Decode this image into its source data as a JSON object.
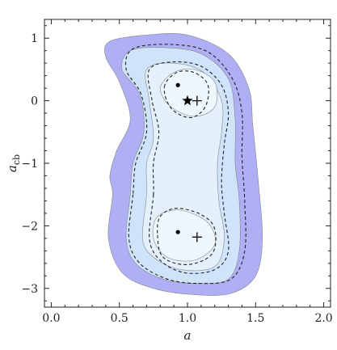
{
  "chart_data": {
    "type": "contour",
    "title": "",
    "xlabel": "a",
    "ylabel_main": "a",
    "ylabel_sub": "cb",
    "xlim": [
      -0.05,
      2.05
    ],
    "ylim": [
      -3.3,
      1.3
    ],
    "xticks": [
      0.0,
      0.5,
      1.0,
      1.5,
      2.0
    ],
    "xtick_labels": [
      "0.0",
      "0.5",
      "1.0",
      "1.5",
      "2.0"
    ],
    "yticks": [
      1,
      0,
      -1,
      -2,
      -3
    ],
    "ytick_labels": [
      "1",
      "0",
      "−1",
      "−2",
      "−3"
    ],
    "grid": false,
    "colors": {
      "outer_region": "#aeaff5",
      "middle_region": "#cfe4fa",
      "inner_region": "#e4f1fd",
      "core_region": "#eef6fe",
      "contour_line": "#222222",
      "region_edge": "#888888"
    },
    "regions": [
      {
        "level": 1,
        "fill": "outer_region",
        "boundary": [
          [
            0.45,
            -1.5
          ],
          [
            0.42,
            -2.2
          ],
          [
            0.52,
            -2.75
          ],
          [
            0.75,
            -3.0
          ],
          [
            1.05,
            -3.1
          ],
          [
            1.32,
            -3.08
          ],
          [
            1.5,
            -2.8
          ],
          [
            1.55,
            -2.2
          ],
          [
            1.52,
            -1.3
          ],
          [
            1.48,
            -0.4
          ],
          [
            1.45,
            0.2
          ],
          [
            1.3,
            0.75
          ],
          [
            1.0,
            1.05
          ],
          [
            0.7,
            1.05
          ],
          [
            0.43,
            0.95
          ],
          [
            0.4,
            0.7
          ],
          [
            0.5,
            0.3
          ],
          [
            0.58,
            -0.3
          ],
          [
            0.48,
            -0.8
          ],
          [
            0.43,
            -1.2
          ]
        ]
      },
      {
        "level": 2,
        "fill": "middle_region",
        "boundary": [
          [
            0.58,
            -1.5
          ],
          [
            0.55,
            -2.2
          ],
          [
            0.62,
            -2.6
          ],
          [
            0.82,
            -2.85
          ],
          [
            1.08,
            -2.92
          ],
          [
            1.3,
            -2.85
          ],
          [
            1.38,
            -2.4
          ],
          [
            1.38,
            -1.6
          ],
          [
            1.35,
            -1.0
          ],
          [
            1.35,
            -0.3
          ],
          [
            1.3,
            0.35
          ],
          [
            1.1,
            0.75
          ],
          [
            0.82,
            0.85
          ],
          [
            0.58,
            0.8
          ],
          [
            0.52,
            0.5
          ],
          [
            0.65,
            0.1
          ],
          [
            0.68,
            -0.5
          ],
          [
            0.6,
            -1.0
          ]
        ]
      },
      {
        "level": 3,
        "fill": "inner_region",
        "boundary": [
          [
            0.7,
            -1.5
          ],
          [
            0.67,
            -2.2
          ],
          [
            0.75,
            -2.5
          ],
          [
            0.95,
            -2.7
          ],
          [
            1.2,
            -2.65
          ],
          [
            1.27,
            -2.2
          ],
          [
            1.23,
            -1.6
          ],
          [
            1.22,
            -1.0
          ],
          [
            1.25,
            -0.5
          ],
          [
            1.25,
            0.0
          ],
          [
            1.12,
            0.45
          ],
          [
            0.9,
            0.6
          ],
          [
            0.7,
            0.5
          ],
          [
            0.72,
            0.0
          ],
          [
            0.75,
            -0.6
          ],
          [
            0.7,
            -1.0
          ]
        ]
      },
      {
        "level": 4,
        "fill": "core_region",
        "boundary": [
          [
            0.75,
            -2.2
          ],
          [
            0.85,
            -2.5
          ],
          [
            1.05,
            -2.55
          ],
          [
            1.2,
            -2.3
          ],
          [
            1.15,
            -1.95
          ],
          [
            0.95,
            -1.75
          ],
          [
            0.78,
            -1.85
          ]
        ]
      },
      {
        "level": 4,
        "fill": "core_region",
        "boundary": [
          [
            0.8,
            0.2
          ],
          [
            0.9,
            0.45
          ],
          [
            1.05,
            0.5
          ],
          [
            1.2,
            0.3
          ],
          [
            1.2,
            -0.1
          ],
          [
            1.05,
            -0.25
          ],
          [
            0.88,
            -0.1
          ]
        ]
      }
    ],
    "dashed_contours": [
      {
        "level": "outer",
        "path": [
          [
            0.6,
            -1.5
          ],
          [
            0.57,
            -2.2
          ],
          [
            0.65,
            -2.6
          ],
          [
            0.85,
            -2.85
          ],
          [
            1.08,
            -2.92
          ],
          [
            1.32,
            -2.85
          ],
          [
            1.42,
            -2.4
          ],
          [
            1.42,
            -1.6
          ],
          [
            1.4,
            -0.9
          ],
          [
            1.4,
            -0.2
          ],
          [
            1.33,
            0.35
          ],
          [
            1.15,
            0.78
          ],
          [
            0.88,
            0.9
          ],
          [
            0.6,
            0.83
          ],
          [
            0.55,
            0.5
          ],
          [
            0.66,
            0.1
          ],
          [
            0.7,
            -0.5
          ],
          [
            0.62,
            -1.0
          ]
        ]
      },
      {
        "level": "middle",
        "path": [
          [
            0.75,
            -1.5
          ],
          [
            0.72,
            -2.2
          ],
          [
            0.8,
            -2.55
          ],
          [
            0.98,
            -2.75
          ],
          [
            1.2,
            -2.7
          ],
          [
            1.3,
            -2.4
          ],
          [
            1.27,
            -1.8
          ],
          [
            1.25,
            -1.3
          ],
          [
            1.27,
            -0.7
          ],
          [
            1.3,
            -0.2
          ],
          [
            1.25,
            0.25
          ],
          [
            1.1,
            0.55
          ],
          [
            0.9,
            0.62
          ],
          [
            0.72,
            0.5
          ],
          [
            0.74,
            0.0
          ],
          [
            0.79,
            -0.5
          ],
          [
            0.75,
            -1.0
          ]
        ]
      },
      {
        "level": "inner_bottom",
        "path": [
          [
            0.78,
            -2.15
          ],
          [
            0.82,
            -2.5
          ],
          [
            1.0,
            -2.62
          ],
          [
            1.18,
            -2.45
          ],
          [
            1.2,
            -2.05
          ],
          [
            1.1,
            -1.82
          ],
          [
            0.92,
            -1.72
          ],
          [
            0.8,
            -1.85
          ]
        ]
      },
      {
        "level": "inner_top",
        "path": [
          [
            0.83,
            0.22
          ],
          [
            0.92,
            0.45
          ],
          [
            1.05,
            0.45
          ],
          [
            1.15,
            0.25
          ],
          [
            1.13,
            -0.1
          ],
          [
            1.02,
            -0.27
          ],
          [
            0.88,
            -0.12
          ]
        ]
      }
    ],
    "points": [
      {
        "marker": "dot",
        "x": 0.93,
        "y": 0.25
      },
      {
        "marker": "star",
        "x": 1.0,
        "y": 0.0
      },
      {
        "marker": "plus",
        "x": 1.07,
        "y": 0.0
      },
      {
        "marker": "dot",
        "x": 0.93,
        "y": -2.1
      },
      {
        "marker": "plus",
        "x": 1.07,
        "y": -2.18
      }
    ]
  }
}
